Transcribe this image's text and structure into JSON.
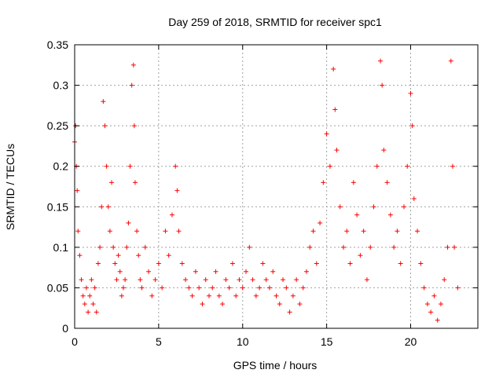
{
  "chart_data": {
    "type": "scatter",
    "title": "Day 259 of 2018, SRMTID for receiver spc1",
    "xlabel": "GPS time / hours",
    "ylabel": "SRMTID / TECUs",
    "xlim": [
      0,
      24
    ],
    "ylim": [
      0,
      0.35
    ],
    "xticks": [
      0,
      5,
      10,
      15,
      20
    ],
    "xtick_labels": [
      "0",
      "5",
      "10",
      "15",
      "20"
    ],
    "yticks": [
      0,
      0.05,
      0.1,
      0.15,
      0.2,
      0.25,
      0.3,
      0.35
    ],
    "ytick_labels": [
      "0",
      "0.05",
      "0.1",
      "0.15",
      "0.2",
      "0.25",
      "0.3",
      "0.35"
    ],
    "grid": true,
    "marker": "+",
    "marker_color": "#ff0000",
    "series": [
      {
        "name": "SRMTID",
        "x": [
          0.0,
          0.05,
          0.1,
          0.15,
          0.2,
          0.3,
          0.4,
          0.5,
          0.6,
          0.7,
          0.8,
          0.9,
          1.0,
          1.1,
          1.2,
          1.3,
          1.4,
          1.5,
          1.6,
          1.7,
          1.8,
          1.9,
          2.0,
          2.1,
          2.2,
          2.3,
          2.4,
          2.5,
          2.6,
          2.7,
          2.8,
          2.9,
          3.0,
          3.1,
          3.2,
          3.3,
          3.4,
          3.5,
          3.55,
          3.6,
          3.7,
          3.8,
          3.9,
          4.0,
          4.2,
          4.4,
          4.6,
          4.8,
          5.0,
          5.2,
          5.4,
          5.6,
          5.8,
          6.0,
          6.1,
          6.2,
          6.4,
          6.6,
          6.8,
          7.0,
          7.2,
          7.4,
          7.6,
          7.8,
          8.0,
          8.2,
          8.4,
          8.6,
          8.8,
          9.0,
          9.2,
          9.4,
          9.6,
          9.8,
          10.0,
          10.2,
          10.4,
          10.6,
          10.8,
          11.0,
          11.2,
          11.4,
          11.6,
          11.8,
          12.0,
          12.2,
          12.4,
          12.6,
          12.8,
          13.0,
          13.2,
          13.4,
          13.6,
          13.8,
          14.0,
          14.2,
          14.4,
          14.6,
          14.8,
          15.0,
          15.2,
          15.4,
          15.5,
          15.6,
          15.8,
          16.0,
          16.2,
          16.4,
          16.6,
          16.8,
          17.0,
          17.2,
          17.4,
          17.6,
          17.8,
          18.0,
          18.2,
          18.3,
          18.4,
          18.6,
          18.8,
          19.0,
          19.2,
          19.4,
          19.6,
          19.8,
          20.0,
          20.1,
          20.2,
          20.4,
          20.6,
          20.8,
          21.0,
          21.2,
          21.4,
          21.6,
          21.8,
          22.0,
          22.2,
          22.4,
          22.5,
          22.6,
          22.8
        ],
        "y": [
          0.23,
          0.25,
          0.2,
          0.17,
          0.12,
          0.09,
          0.06,
          0.04,
          0.03,
          0.05,
          0.02,
          0.04,
          0.06,
          0.03,
          0.05,
          0.02,
          0.08,
          0.1,
          0.15,
          0.28,
          0.25,
          0.2,
          0.15,
          0.12,
          0.18,
          0.1,
          0.08,
          0.06,
          0.09,
          0.07,
          0.04,
          0.05,
          0.06,
          0.1,
          0.13,
          0.2,
          0.3,
          0.325,
          0.25,
          0.18,
          0.12,
          0.09,
          0.06,
          0.05,
          0.1,
          0.07,
          0.04,
          0.06,
          0.08,
          0.05,
          0.12,
          0.09,
          0.14,
          0.2,
          0.17,
          0.12,
          0.08,
          0.06,
          0.05,
          0.04,
          0.07,
          0.05,
          0.03,
          0.06,
          0.04,
          0.05,
          0.07,
          0.04,
          0.03,
          0.06,
          0.05,
          0.08,
          0.04,
          0.06,
          0.05,
          0.07,
          0.1,
          0.06,
          0.04,
          0.05,
          0.08,
          0.06,
          0.05,
          0.07,
          0.04,
          0.03,
          0.06,
          0.05,
          0.02,
          0.04,
          0.06,
          0.03,
          0.05,
          0.07,
          0.1,
          0.12,
          0.08,
          0.13,
          0.18,
          0.24,
          0.2,
          0.32,
          0.27,
          0.22,
          0.15,
          0.1,
          0.12,
          0.08,
          0.18,
          0.14,
          0.09,
          0.12,
          0.06,
          0.1,
          0.15,
          0.2,
          0.33,
          0.3,
          0.22,
          0.18,
          0.14,
          0.1,
          0.12,
          0.08,
          0.15,
          0.2,
          0.29,
          0.25,
          0.16,
          0.12,
          0.08,
          0.05,
          0.03,
          0.02,
          0.04,
          0.01,
          0.03,
          0.06,
          0.1,
          0.33,
          0.2,
          0.1,
          0.05
        ]
      }
    ]
  }
}
